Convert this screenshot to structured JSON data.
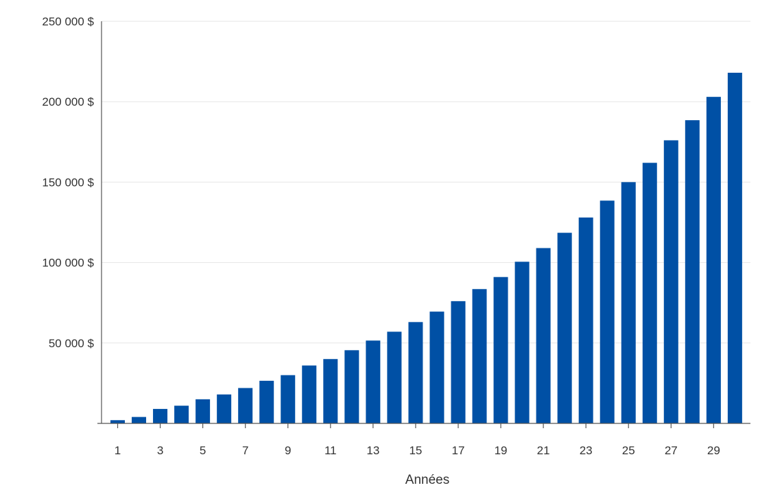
{
  "chart_data": {
    "type": "bar",
    "title": "",
    "xlabel": "Années",
    "ylabel": "",
    "categories": [
      1,
      2,
      3,
      4,
      5,
      6,
      7,
      8,
      9,
      10,
      11,
      12,
      13,
      14,
      15,
      16,
      17,
      18,
      19,
      20,
      21,
      22,
      23,
      24,
      25,
      26,
      27,
      28,
      29,
      30
    ],
    "x_tick_labels": [
      "1",
      "3",
      "5",
      "7",
      "9",
      "11",
      "13",
      "15",
      "17",
      "19",
      "21",
      "23",
      "25",
      "27",
      "29"
    ],
    "values": [
      2000,
      4000,
      9000,
      11000,
      15000,
      18000,
      22000,
      26500,
      30000,
      36000,
      40000,
      45500,
      51500,
      57000,
      63000,
      69500,
      76000,
      83500,
      91000,
      100500,
      109000,
      118500,
      128000,
      138500,
      150000,
      162000,
      176000,
      188500,
      203000,
      218000
    ],
    "ylim": [
      0,
      250000
    ],
    "y_tick_labels": [
      "250 000 $",
      "200 000 $",
      "150 000 $",
      "100 000 $",
      "50 000 $"
    ],
    "grid": true,
    "legend": "none",
    "bar_color": "#0050A5",
    "grid_color": "#e6e6e6",
    "axis_color": "#555555"
  }
}
